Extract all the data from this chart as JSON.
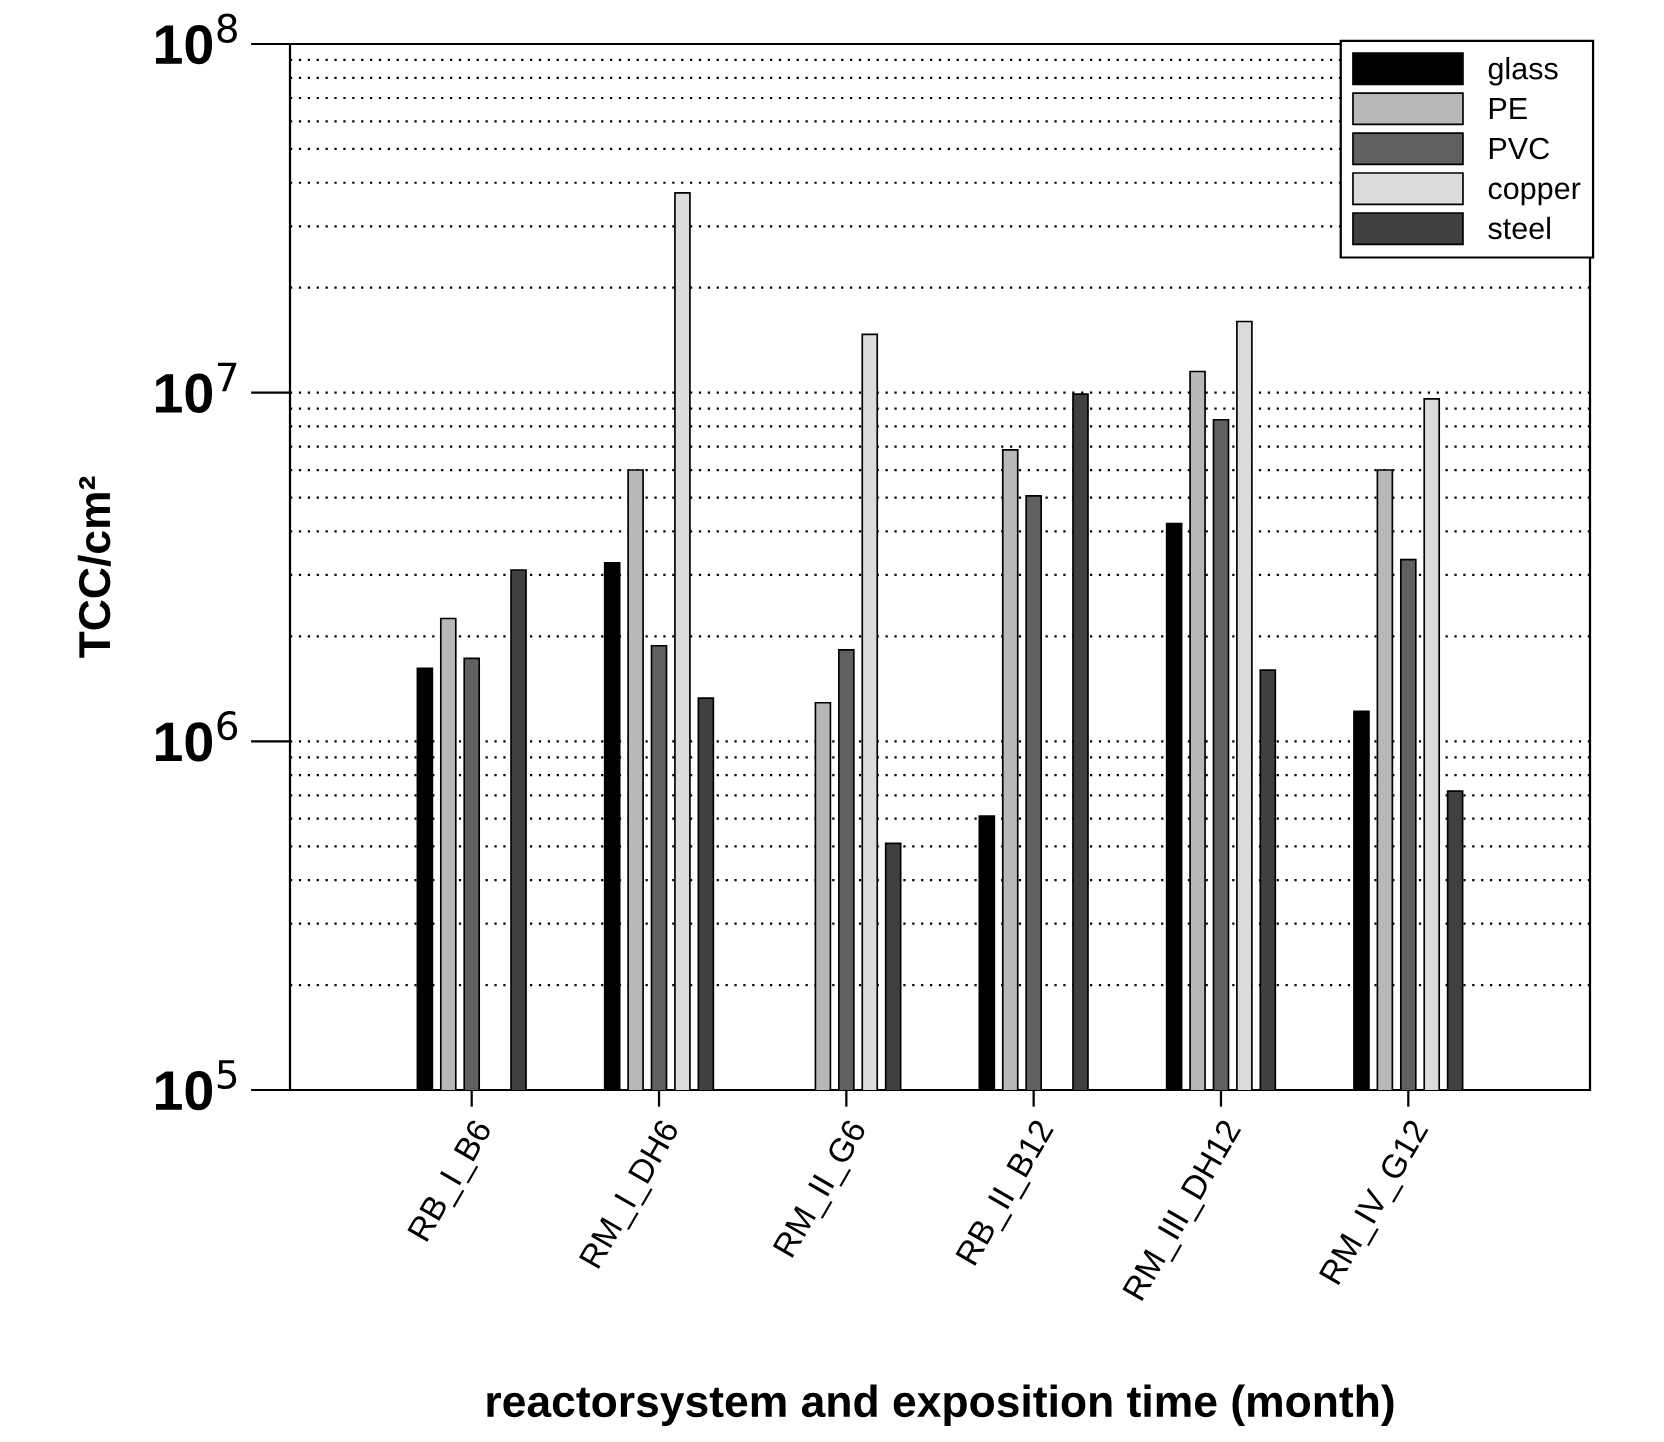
{
  "chart_data": {
    "type": "bar",
    "xlabel": "reactorsystem and exposition time (month)",
    "ylabel": "TCC/cm²",
    "categories": [
      "RB_I_B6",
      "RM_I_DH6",
      "RM_II_G6",
      "RB_II_B12",
      "RM_III_DH12",
      "RM_IV_G12"
    ],
    "series": [
      {
        "name": "glass",
        "color": "#000000",
        "values": [
          1620000,
          3250000,
          null,
          610000,
          4210000,
          1220000
        ]
      },
      {
        "name": "PE",
        "color": "#b8b8b8",
        "values": [
          2250000,
          6000000,
          1290000,
          6850000,
          11500000,
          6000000
        ]
      },
      {
        "name": "PVC",
        "color": "#606060",
        "values": [
          1730000,
          1880000,
          1830000,
          5060000,
          8360000,
          3320000
        ]
      },
      {
        "name": "copper",
        "color": "#dcdcdc",
        "values": [
          null,
          37400000,
          14700000,
          null,
          16000000,
          9600000
        ]
      },
      {
        "name": "steel",
        "color": "#404040",
        "values": [
          3100000,
          1330000,
          510000,
          9900000,
          1600000,
          720000
        ]
      }
    ],
    "log": "y",
    "ylim": [
      100000,
      100000000
    ],
    "yticks": [
      {
        "value": 100000,
        "label": "10$^{5}$"
      },
      {
        "value": 1000000,
        "label": "10$^{6}$"
      },
      {
        "value": 10000000,
        "label": "10$^{7}$"
      },
      {
        "value": 100000000,
        "label": "10$^{8}$"
      }
    ],
    "grid": "y",
    "legend": "top right"
  }
}
